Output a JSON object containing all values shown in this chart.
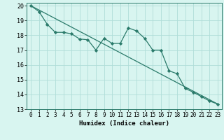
{
  "xlabel": "Humidex (Indice chaleur)",
  "ylabel": "",
  "bg_color": "#d8f5f0",
  "grid_color": "#b0ddd8",
  "line_color": "#2a7a6a",
  "xlim": [
    -0.5,
    23.5
  ],
  "ylim": [
    13,
    20.2
  ],
  "xticks": [
    0,
    1,
    2,
    3,
    4,
    5,
    6,
    7,
    8,
    9,
    10,
    11,
    12,
    13,
    14,
    15,
    16,
    17,
    18,
    19,
    20,
    21,
    22,
    23
  ],
  "yticks": [
    13,
    14,
    15,
    16,
    17,
    18,
    19,
    20
  ],
  "curve_x": [
    0,
    1,
    2,
    3,
    4,
    5,
    6,
    7,
    8,
    9,
    10,
    11,
    12,
    13,
    14,
    15,
    16,
    17,
    18,
    19,
    20,
    21,
    22,
    23
  ],
  "curve_y": [
    20.0,
    19.6,
    18.75,
    18.2,
    18.2,
    18.1,
    17.75,
    17.7,
    17.0,
    17.8,
    17.45,
    17.45,
    18.5,
    18.3,
    17.8,
    17.0,
    17.0,
    15.6,
    15.4,
    14.4,
    14.15,
    13.85,
    13.55,
    13.35
  ],
  "line_x": [
    0,
    23
  ],
  "line_y": [
    20.0,
    13.35
  ]
}
